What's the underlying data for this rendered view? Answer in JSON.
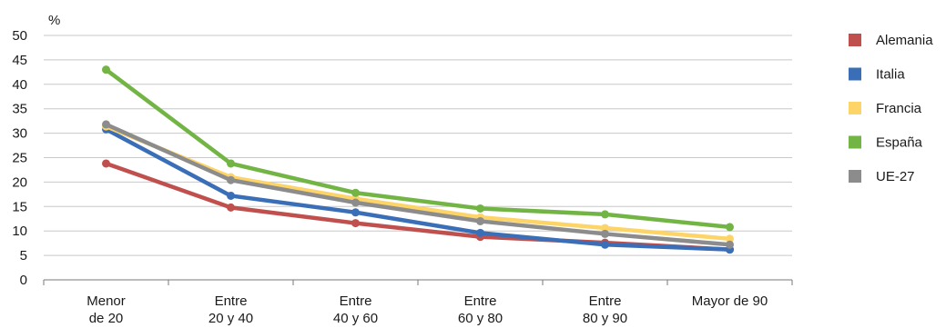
{
  "chart_data": {
    "type": "line",
    "ylabel": "%",
    "ylim": [
      0,
      50
    ],
    "yticks": [
      0,
      5,
      10,
      15,
      20,
      25,
      30,
      35,
      40,
      45,
      50
    ],
    "grid": "horizontal",
    "legend_position": "right",
    "categories": [
      [
        "Menor",
        "de 20"
      ],
      [
        "Entre",
        "20 y 40"
      ],
      [
        "Entre",
        "40 y 60"
      ],
      [
        "Entre",
        "60 y 80"
      ],
      [
        "Entre",
        "80 y 90"
      ],
      [
        "Mayor de 90"
      ]
    ],
    "series": [
      {
        "name": "Alemania",
        "color": "#c0504d",
        "values": [
          23.8,
          14.8,
          11.6,
          8.8,
          7.6,
          6.2
        ]
      },
      {
        "name": "Italia",
        "color": "#3a6fb8",
        "values": [
          30.8,
          17.2,
          13.8,
          9.6,
          7.2,
          6.2
        ]
      },
      {
        "name": "Francia",
        "color": "#fdd468",
        "values": [
          31.4,
          21.0,
          16.6,
          12.8,
          10.6,
          8.4
        ]
      },
      {
        "name": "España",
        "color": "#72b545",
        "values": [
          43.0,
          23.8,
          17.8,
          14.6,
          13.4,
          10.8
        ]
      },
      {
        "name": "UE-27",
        "color": "#8c8c8c",
        "values": [
          31.8,
          20.4,
          15.8,
          12.0,
          9.4,
          7.2
        ]
      }
    ]
  }
}
